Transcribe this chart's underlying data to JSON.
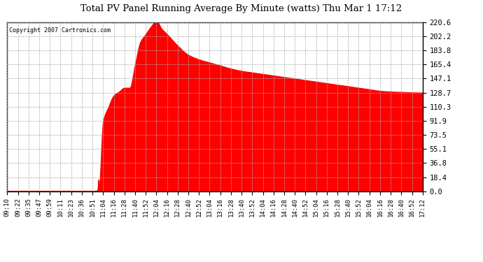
{
  "title": "Total PV Panel Running Average By Minute (watts) Thu Mar 1 17:12",
  "copyright_text": "Copyright 2007 Cartronics.com",
  "fill_color": "#FF0000",
  "bg_color": "#FFFFFF",
  "grid_color": "#AAAAAA",
  "yticks": [
    0.0,
    18.4,
    36.8,
    55.1,
    73.5,
    91.9,
    110.3,
    128.7,
    147.1,
    165.4,
    183.8,
    202.2,
    220.6
  ],
  "ymax": 220.6,
  "ymin": 0.0,
  "xtick_labels": [
    "09:10",
    "09:22",
    "09:35",
    "09:47",
    "09:59",
    "10:11",
    "10:23",
    "10:36",
    "10:51",
    "11:04",
    "11:16",
    "11:28",
    "11:40",
    "11:52",
    "12:04",
    "12:16",
    "12:28",
    "12:40",
    "12:52",
    "13:04",
    "13:16",
    "13:28",
    "13:40",
    "13:52",
    "14:04",
    "14:16",
    "14:28",
    "14:40",
    "14:52",
    "15:04",
    "15:16",
    "15:28",
    "15:40",
    "15:52",
    "16:04",
    "16:16",
    "16:28",
    "16:40",
    "16:52",
    "17:12"
  ],
  "key_points_x": [
    0,
    7.5,
    8.3,
    8.5,
    8.55,
    8.6,
    9.0,
    9.5,
    10.0,
    10.5,
    11.0,
    11.5,
    12.0,
    12.5,
    13.0,
    13.5,
    14.0,
    14.5,
    15.0,
    16.0,
    17.0,
    18.0,
    19.0,
    20.0,
    21.0,
    22.0,
    23.0,
    24.0,
    25.0,
    26.0,
    27.0,
    28.0,
    29.0,
    30.0,
    31.0,
    32.0,
    33.0,
    34.0,
    35.0,
    36.0,
    37.0,
    38.0,
    39.0
  ],
  "key_points_y": [
    0,
    0,
    0,
    3,
    15,
    3,
    91,
    110,
    125,
    130,
    135,
    135,
    165,
    195,
    205,
    215,
    222,
    212,
    205,
    190,
    178,
    172,
    168,
    164,
    160,
    157,
    155,
    153,
    151,
    149,
    147,
    145,
    143,
    141,
    139,
    137,
    135,
    133,
    131,
    130,
    129.5,
    129,
    128.7
  ]
}
